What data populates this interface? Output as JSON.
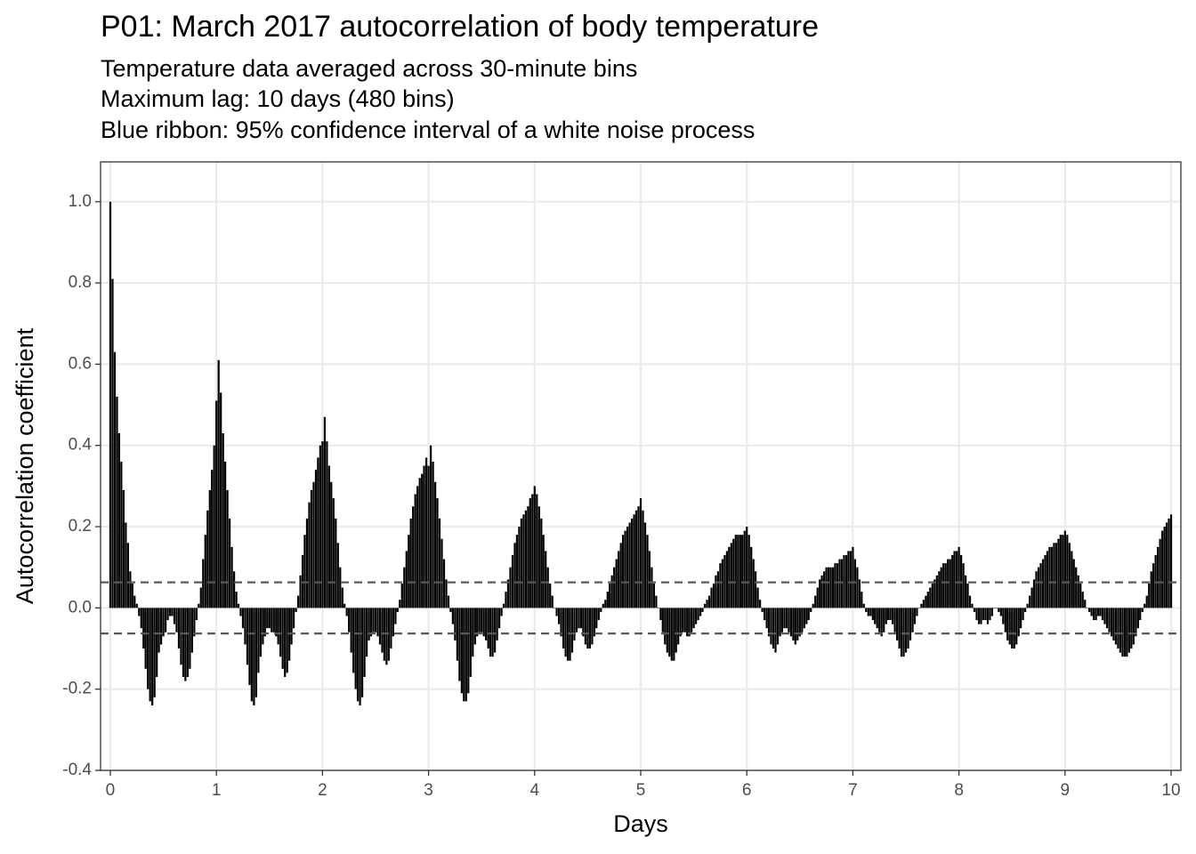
{
  "chart_data": {
    "type": "bar",
    "title": "P01: March 2017 autocorrelation of body temperature",
    "subtitle": [
      "Temperature data averaged across 30-minute bins",
      "Maximum lag: 10 days (480 bins)",
      "Blue ribbon: 95% confidence interval of a white noise process"
    ],
    "x_label": "Days",
    "y_label": "Autocorrelation coefficient",
    "color": "#000000",
    "grid": true,
    "xlim": [
      -0.092,
      10.092
    ],
    "xticks": [
      0,
      1,
      2,
      3,
      4,
      5,
      6,
      7,
      8,
      9,
      10
    ],
    "ylim": [
      -0.4,
      1.098
    ],
    "yticks": [
      -0.4,
      -0.2,
      {
        "value": 0,
        "label": "0.0"
      },
      0.2,
      0.4,
      0.6,
      0.8,
      {
        "value": 1,
        "label": "1.0"
      }
    ],
    "ci_lines": [
      0.063,
      -0.063
    ],
    "x": [
      0,
      0.021,
      0.042,
      0.063,
      0.083,
      0.104,
      0.125,
      0.146,
      0.167,
      0.188,
      0.208,
      0.229,
      0.25,
      0.271,
      0.292,
      0.313,
      0.333,
      0.354,
      0.375,
      0.396,
      0.417,
      0.438,
      0.458,
      0.479,
      0.5,
      0.521,
      0.542,
      0.563,
      0.583,
      0.604,
      0.625,
      0.646,
      0.667,
      0.688,
      0.708,
      0.729,
      0.75,
      0.771,
      0.792,
      0.813,
      0.833,
      0.854,
      0.875,
      0.896,
      0.917,
      0.938,
      0.958,
      0.979,
      1,
      1.021,
      1.042,
      1.063,
      1.083,
      1.104,
      1.125,
      1.146,
      1.167,
      1.188,
      1.208,
      1.229,
      1.25,
      1.271,
      1.292,
      1.313,
      1.333,
      1.354,
      1.375,
      1.396,
      1.417,
      1.438,
      1.458,
      1.479,
      1.5,
      1.521,
      1.542,
      1.563,
      1.583,
      1.604,
      1.625,
      1.646,
      1.667,
      1.688,
      1.708,
      1.729,
      1.75,
      1.771,
      1.792,
      1.813,
      1.833,
      1.854,
      1.875,
      1.896,
      1.917,
      1.938,
      1.958,
      1.979,
      2,
      2.021,
      2.042,
      2.063,
      2.083,
      2.104,
      2.125,
      2.146,
      2.167,
      2.188,
      2.208,
      2.229,
      2.25,
      2.271,
      2.292,
      2.313,
      2.333,
      2.354,
      2.375,
      2.396,
      2.417,
      2.438,
      2.458,
      2.479,
      2.5,
      2.521,
      2.542,
      2.563,
      2.583,
      2.604,
      2.625,
      2.646,
      2.667,
      2.688,
      2.708,
      2.729,
      2.75,
      2.771,
      2.792,
      2.813,
      2.833,
      2.854,
      2.875,
      2.896,
      2.917,
      2.938,
      2.958,
      2.979,
      3,
      3.021,
      3.042,
      3.063,
      3.083,
      3.104,
      3.125,
      3.146,
      3.167,
      3.188,
      3.208,
      3.229,
      3.25,
      3.271,
      3.292,
      3.313,
      3.333,
      3.354,
      3.375,
      3.396,
      3.417,
      3.438,
      3.458,
      3.479,
      3.5,
      3.521,
      3.542,
      3.563,
      3.583,
      3.604,
      3.625,
      3.646,
      3.667,
      3.688,
      3.708,
      3.729,
      3.75,
      3.771,
      3.792,
      3.813,
      3.833,
      3.854,
      3.875,
      3.896,
      3.917,
      3.938,
      3.958,
      3.979,
      4,
      4.021,
      4.042,
      4.063,
      4.083,
      4.104,
      4.125,
      4.146,
      4.167,
      4.188,
      4.208,
      4.229,
      4.25,
      4.271,
      4.292,
      4.313,
      4.333,
      4.354,
      4.375,
      4.396,
      4.417,
      4.438,
      4.458,
      4.479,
      4.5,
      4.521,
      4.542,
      4.563,
      4.583,
      4.604,
      4.625,
      4.646,
      4.667,
      4.688,
      4.708,
      4.729,
      4.75,
      4.771,
      4.792,
      4.813,
      4.833,
      4.854,
      4.875,
      4.896,
      4.917,
      4.938,
      4.958,
      4.979,
      5,
      5.021,
      5.042,
      5.063,
      5.083,
      5.104,
      5.125,
      5.146,
      5.167,
      5.188,
      5.208,
      5.229,
      5.25,
      5.271,
      5.292,
      5.313,
      5.333,
      5.354,
      5.375,
      5.396,
      5.417,
      5.438,
      5.458,
      5.479,
      5.5,
      5.521,
      5.542,
      5.563,
      5.583,
      5.604,
      5.625,
      5.646,
      5.667,
      5.688,
      5.708,
      5.729,
      5.75,
      5.771,
      5.792,
      5.813,
      5.833,
      5.854,
      5.875,
      5.896,
      5.917,
      5.938,
      5.958,
      5.979,
      6,
      6.021,
      6.042,
      6.063,
      6.083,
      6.104,
      6.125,
      6.146,
      6.167,
      6.188,
      6.208,
      6.229,
      6.25,
      6.271,
      6.292,
      6.313,
      6.333,
      6.354,
      6.375,
      6.396,
      6.417,
      6.438,
      6.458,
      6.479,
      6.5,
      6.521,
      6.542,
      6.563,
      6.583,
      6.604,
      6.625,
      6.646,
      6.667,
      6.688,
      6.708,
      6.729,
      6.75,
      6.771,
      6.792,
      6.813,
      6.833,
      6.854,
      6.875,
      6.896,
      6.917,
      6.938,
      6.958,
      6.979,
      7,
      7.021,
      7.042,
      7.063,
      7.083,
      7.104,
      7.125,
      7.146,
      7.167,
      7.188,
      7.208,
      7.229,
      7.25,
      7.271,
      7.292,
      7.313,
      7.333,
      7.354,
      7.375,
      7.396,
      7.417,
      7.438,
      7.458,
      7.479,
      7.5,
      7.521,
      7.542,
      7.563,
      7.583,
      7.604,
      7.625,
      7.646,
      7.667,
      7.688,
      7.708,
      7.729,
      7.75,
      7.771,
      7.792,
      7.813,
      7.833,
      7.854,
      7.875,
      7.896,
      7.917,
      7.938,
      7.958,
      7.979,
      8,
      8.021,
      8.042,
      8.063,
      8.083,
      8.104,
      8.125,
      8.146,
      8.167,
      8.188,
      8.208,
      8.229,
      8.25,
      8.271,
      8.292,
      8.313,
      8.333,
      8.354,
      8.375,
      8.396,
      8.417,
      8.438,
      8.458,
      8.479,
      8.5,
      8.521,
      8.542,
      8.563,
      8.583,
      8.604,
      8.625,
      8.646,
      8.667,
      8.688,
      8.708,
      8.729,
      8.75,
      8.771,
      8.792,
      8.813,
      8.833,
      8.854,
      8.875,
      8.896,
      8.917,
      8.938,
      8.958,
      8.979,
      9,
      9.021,
      9.042,
      9.063,
      9.083,
      9.104,
      9.125,
      9.146,
      9.167,
      9.188,
      9.208,
      9.229,
      9.25,
      9.271,
      9.292,
      9.313,
      9.333,
      9.354,
      9.375,
      9.396,
      9.417,
      9.438,
      9.458,
      9.479,
      9.5,
      9.521,
      9.542,
      9.563,
      9.583,
      9.604,
      9.625,
      9.646,
      9.667,
      9.688,
      9.708,
      9.729,
      9.75,
      9.771,
      9.792,
      9.813,
      9.833,
      9.854,
      9.875,
      9.896,
      9.917,
      9.938,
      9.958,
      9.979,
      10
    ],
    "values": [
      1,
      0.81,
      0.63,
      0.52,
      0.43,
      0.36,
      0.29,
      0.21,
      0.16,
      0.09,
      0.06,
      0.03,
      0.01,
      -0.02,
      -0.05,
      -0.1,
      -0.15,
      -0.2,
      -0.23,
      -0.24,
      -0.22,
      -0.17,
      -0.11,
      -0.09,
      -0.07,
      -0.06,
      -0.03,
      -0.02,
      -0.02,
      -0.04,
      -0.06,
      -0.1,
      -0.14,
      -0.17,
      -0.18,
      -0.17,
      -0.15,
      -0.11,
      -0.07,
      -0.03,
      0.01,
      0.05,
      0.12,
      0.18,
      0.24,
      0.29,
      0.34,
      0.4,
      0.51,
      0.61,
      0.53,
      0.43,
      0.36,
      0.29,
      0.22,
      0.15,
      0.09,
      0.04,
      0.01,
      -0.02,
      -0.05,
      -0.09,
      -0.14,
      -0.19,
      -0.23,
      -0.24,
      -0.22,
      -0.16,
      -0.12,
      -0.09,
      -0.07,
      -0.05,
      -0.05,
      -0.06,
      -0.06,
      -0.07,
      -0.09,
      -0.12,
      -0.15,
      -0.17,
      -0.16,
      -0.13,
      -0.09,
      -0.05,
      -0.01,
      0.03,
      0.08,
      0.13,
      0.18,
      0.22,
      0.26,
      0.29,
      0.31,
      0.34,
      0.37,
      0.4,
      0.41,
      0.47,
      0.41,
      0.35,
      0.31,
      0.27,
      0.22,
      0.16,
      0.1,
      0.05,
      0.01,
      -0.02,
      -0.06,
      -0.11,
      -0.16,
      -0.2,
      -0.23,
      -0.24,
      -0.22,
      -0.17,
      -0.12,
      -0.08,
      -0.07,
      -0.06,
      -0.06,
      -0.07,
      -0.09,
      -0.11,
      -0.13,
      -0.14,
      -0.13,
      -0.1,
      -0.07,
      -0.04,
      -0.01,
      0.02,
      0.06,
      0.1,
      0.14,
      0.18,
      0.22,
      0.25,
      0.28,
      0.3,
      0.32,
      0.33,
      0.35,
      0.37,
      0.35,
      0.4,
      0.36,
      0.31,
      0.27,
      0.22,
      0.17,
      0.12,
      0.07,
      0.03,
      -0.01,
      -0.04,
      -0.08,
      -0.13,
      -0.18,
      -0.21,
      -0.23,
      -0.23,
      -0.21,
      -0.17,
      -0.12,
      -0.09,
      -0.07,
      -0.06,
      -0.06,
      -0.07,
      -0.08,
      -0.1,
      -0.12,
      -0.12,
      -0.11,
      -0.08,
      -0.05,
      -0.02,
      0.01,
      0.04,
      0.07,
      0.1,
      0.13,
      0.16,
      0.18,
      0.2,
      0.22,
      0.23,
      0.24,
      0.25,
      0.27,
      0.28,
      0.3,
      0.28,
      0.25,
      0.22,
      0.18,
      0.14,
      0.1,
      0.06,
      0.03,
      0,
      -0.02,
      -0.04,
      -0.07,
      -0.1,
      -0.12,
      -0.13,
      -0.13,
      -0.11,
      -0.08,
      -0.06,
      -0.05,
      -0.05,
      -0.07,
      -0.09,
      -0.1,
      -0.1,
      -0.09,
      -0.07,
      -0.05,
      -0.03,
      -0.01,
      0.01,
      0.02,
      0.04,
      0.06,
      0.08,
      0.1,
      0.12,
      0.14,
      0.16,
      0.18,
      0.19,
      0.2,
      0.21,
      0.22,
      0.23,
      0.24,
      0.25,
      0.27,
      0.24,
      0.21,
      0.18,
      0.14,
      0.1,
      0.06,
      0.03,
      0,
      -0.03,
      -0.06,
      -0.09,
      -0.11,
      -0.12,
      -0.13,
      -0.13,
      -0.11,
      -0.09,
      -0.07,
      -0.06,
      -0.06,
      -0.07,
      -0.07,
      -0.06,
      -0.05,
      -0.04,
      -0.03,
      -0.02,
      -0.01,
      0.01,
      0.02,
      0.03,
      0.05,
      0.06,
      0.08,
      0.09,
      0.11,
      0.12,
      0.13,
      0.14,
      0.15,
      0.16,
      0.17,
      0.18,
      0.18,
      0.18,
      0.18,
      0.19,
      0.2,
      0.18,
      0.15,
      0.12,
      0.09,
      0.05,
      0.02,
      -0.01,
      -0.03,
      -0.05,
      -0.07,
      -0.09,
      -0.1,
      -0.11,
      -0.09,
      -0.07,
      -0.06,
      -0.05,
      -0.05,
      -0.06,
      -0.07,
      -0.08,
      -0.09,
      -0.08,
      -0.07,
      -0.06,
      -0.05,
      -0.04,
      -0.03,
      -0.01,
      0.01,
      0.03,
      0.05,
      0.07,
      0.08,
      0.09,
      0.1,
      0.1,
      0.1,
      0.1,
      0.11,
      0.11,
      0.12,
      0.12,
      0.13,
      0.13,
      0.14,
      0.14,
      0.15,
      0.12,
      0.1,
      0.07,
      0.04,
      0.01,
      -0.01,
      -0.02,
      -0.02,
      -0.03,
      -0.04,
      -0.05,
      -0.06,
      -0.07,
      -0.06,
      -0.04,
      -0.03,
      -0.03,
      -0.04,
      -0.06,
      -0.08,
      -0.1,
      -0.12,
      -0.12,
      -0.11,
      -0.1,
      -0.08,
      -0.06,
      -0.04,
      -0.02,
      0,
      0.01,
      0.02,
      0.03,
      0.04,
      0.05,
      0.06,
      0.07,
      0.08,
      0.09,
      0.1,
      0.11,
      0.11,
      0.12,
      0.12,
      0.13,
      0.14,
      0.14,
      0.15,
      0.13,
      0.11,
      0.08,
      0.06,
      0.03,
      0.01,
      -0.01,
      -0.03,
      -0.04,
      -0.04,
      -0.03,
      -0.03,
      -0.04,
      -0.03,
      -0.02,
      0,
      0,
      -0.01,
      -0.02,
      -0.04,
      -0.06,
      -0.08,
      -0.09,
      -0.1,
      -0.1,
      -0.09,
      -0.07,
      -0.05,
      -0.03,
      -0.01,
      0.01,
      0.03,
      0.05,
      0.07,
      0.09,
      0.1,
      0.11,
      0.12,
      0.13,
      0.14,
      0.15,
      0.15,
      0.16,
      0.16,
      0.17,
      0.18,
      0.18,
      0.19,
      0.18,
      0.16,
      0.14,
      0.12,
      0.1,
      0.08,
      0.06,
      0.04,
      0.02,
      0,
      -0.01,
      -0.02,
      -0.03,
      -0.03,
      -0.02,
      -0.02,
      -0.03,
      -0.04,
      -0.05,
      -0.06,
      -0.07,
      -0.08,
      -0.09,
      -0.1,
      -0.11,
      -0.12,
      -0.12,
      -0.12,
      -0.11,
      -0.1,
      -0.09,
      -0.07,
      -0.05,
      -0.03,
      -0.01,
      0.01,
      0.03,
      0.06,
      0.09,
      0.11,
      0.13,
      0.15,
      0.17,
      0.19,
      0.2,
      0.21,
      0.22,
      0.23
    ]
  }
}
